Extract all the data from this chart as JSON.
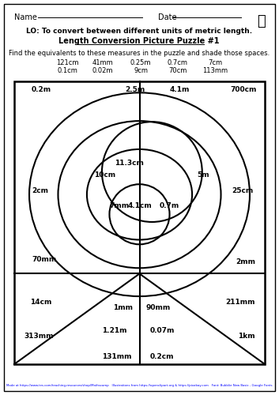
{
  "title_lo": "LO: To convert between different units of metric length.",
  "title_puzzle": "Length Conversion Picture Puzzle #1",
  "instruction": "Find the equivalents to these measures in the puzzle and shade those spaces.",
  "measures_row1": [
    "121cm",
    "41mm",
    "0.25m",
    "0.7cm",
    "7cm"
  ],
  "measures_row2": [
    "0.1cm",
    "0.02m",
    "9cm",
    "70cm",
    "113mm"
  ],
  "name_label": "Name",
  "date_label": "Date",
  "footer": "Made at https://www.tes.com/teaching-resources/shop/Mathscamp   Illustrations from https://openclipart.org & https://pixabay.com   Font: Bubblie New Basic - Google Fonts",
  "labels": {
    "top_left": [
      "0.2m",
      30,
      400
    ],
    "top_mid": [
      "2.5m",
      158,
      400
    ],
    "top_mid2": [
      "4.1m",
      230,
      400
    ],
    "top_right": [
      "700cm",
      320,
      400
    ],
    "left_outer": [
      "2cm",
      28,
      290
    ],
    "left_mid": [
      "10cm",
      112,
      305
    ],
    "left_inner": [
      "7mm",
      130,
      280
    ],
    "right_outer": [
      "25cm",
      298,
      290
    ],
    "right_inner": [
      "0.7m",
      210,
      280
    ],
    "right_circle": [
      "5m",
      270,
      310
    ],
    "center_top": [
      "11.3cm",
      177,
      315
    ],
    "center_inner": [
      "4.1cm",
      177,
      275
    ],
    "bottom_left_outer": [
      "70mm",
      35,
      250
    ],
    "bottom_right_outer": [
      "2mm",
      308,
      255
    ],
    "bottom_left2": [
      "14cm",
      32,
      225
    ],
    "bottom_right2": [
      "211mm",
      300,
      225
    ],
    "bottom_left3": [
      "313mm",
      24,
      196
    ],
    "bottom_left_inner": [
      "1.21m",
      130,
      205
    ],
    "bottom_mid": [
      "1mm",
      155,
      232
    ],
    "bottom_mid2": [
      "90mm",
      198,
      232
    ],
    "bottom_mid3": [
      "0.07m",
      205,
      200
    ],
    "bottom_right3": [
      "1km",
      308,
      196
    ],
    "bottom_left4": [
      "131mm",
      130,
      170
    ],
    "bottom_right4": [
      "0.2cm",
      210,
      170
    ]
  }
}
